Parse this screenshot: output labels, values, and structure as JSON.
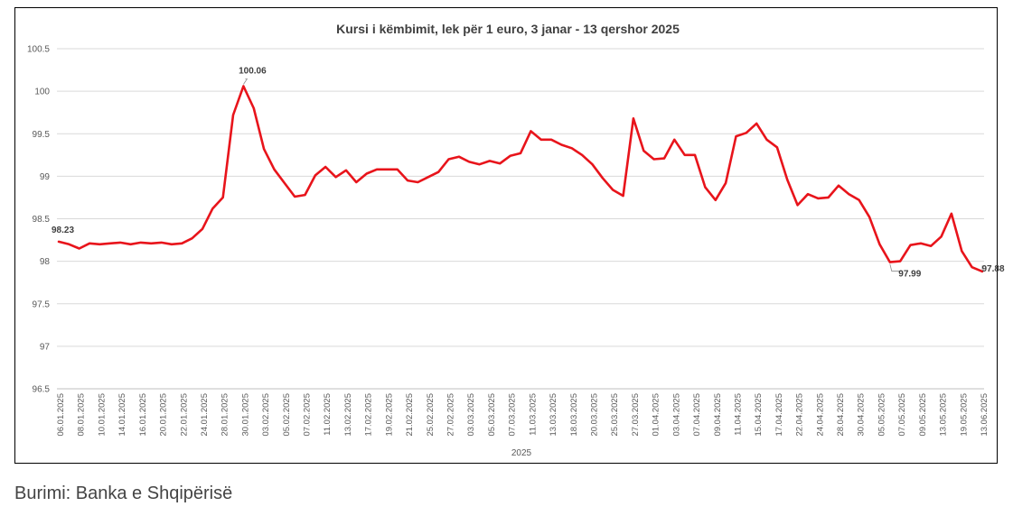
{
  "caption": "Burimi: Banka e Shqipërisë",
  "colors": {
    "line": "#e8141b",
    "grid": "#d9d9d9",
    "axis_text": "#595959"
  },
  "chart_data": {
    "type": "line",
    "title": "Kursi i këmbimit, lek për 1 euro, 3 janar - 13 qershor 2025",
    "xlabel": "2025",
    "ylabel": "",
    "ylim": [
      96.5,
      100.5
    ],
    "yticks": [
      96.5,
      97,
      97.5,
      98,
      98.5,
      99,
      99.5,
      100,
      100.5
    ],
    "ytick_labels": [
      "96.5",
      "97",
      "97.5",
      "98",
      "98.5",
      "99",
      "99.5",
      "100",
      "100.5"
    ],
    "grid": true,
    "legend": "none",
    "x_tick_labels": [
      "06.01.2025",
      "08.01.2025",
      "10.01.2025",
      "14.01.2025",
      "16.01.2025",
      "20.01.2025",
      "22.01.2025",
      "24.01.2025",
      "28.01.2025",
      "30.01.2025",
      "03.02.2025",
      "05.02.2025",
      "07.02.2025",
      "11.02.2025",
      "13.02.2025",
      "17.02.2025",
      "19.02.2025",
      "21.02.2025",
      "25.02.2025",
      "27.02.2025",
      "03.03.2025",
      "05.03.2025",
      "07.03.2025",
      "11.03.2025",
      "13.03.2025",
      "18.03.2025",
      "20.03.2025",
      "25.03.2025",
      "27.03.2025",
      "01.04.2025",
      "03.04.2025",
      "07.04.2025",
      "09.04.2025",
      "11.04.2025",
      "15.04.2025",
      "17.04.2025",
      "22.04.2025",
      "24.04.2025",
      "28.04.2025",
      "30.04.2025",
      "05.05.2025",
      "07.05.2025",
      "09.05.2025",
      "13.05.2025",
      "19.05.2025",
      "13.06.2025"
    ],
    "series": [
      {
        "values": [
          98.23,
          98.2,
          98.15,
          98.21,
          98.2,
          98.21,
          98.22,
          98.2,
          98.22,
          98.21,
          98.22,
          98.2,
          98.21,
          98.27,
          98.38,
          98.62,
          98.75,
          99.72,
          100.06,
          99.8,
          99.32,
          99.08,
          98.92,
          98.76,
          98.78,
          99.01,
          99.11,
          98.99,
          99.07,
          98.93,
          99.03,
          99.08,
          99.08,
          99.08,
          98.95,
          98.93,
          98.99,
          99.05,
          99.2,
          99.23,
          99.17,
          99.14,
          99.18,
          99.15,
          99.24,
          99.27,
          99.53,
          99.43,
          99.43,
          99.37,
          99.33,
          99.25,
          99.14,
          98.98,
          98.84,
          98.77,
          99.68,
          99.3,
          99.2,
          99.21,
          99.43,
          99.25,
          99.25,
          98.87,
          98.72,
          98.92,
          99.47,
          99.51,
          99.62,
          99.43,
          99.34,
          98.96,
          98.66,
          98.79,
          98.74,
          98.75,
          98.89,
          98.79,
          98.72,
          98.52,
          98.2,
          97.99,
          98.0,
          98.19,
          98.21,
          98.18,
          98.29,
          98.56,
          98.12,
          97.93,
          97.88
        ]
      }
    ],
    "annotations": [
      {
        "label": "98.23",
        "index": 0
      },
      {
        "label": "100.06",
        "index": 18
      },
      {
        "label": "97.99",
        "index": 81
      },
      {
        "label": "97.88",
        "index": 90
      }
    ]
  }
}
